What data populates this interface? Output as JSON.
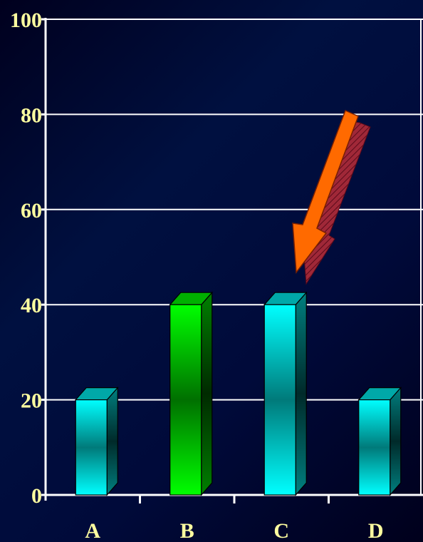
{
  "chart_data": {
    "type": "bar",
    "categories": [
      "A",
      "B",
      "C",
      "D"
    ],
    "values": [
      20,
      40,
      40,
      20
    ],
    "title": "",
    "xlabel": "",
    "ylabel": "",
    "ylim": [
      0,
      100
    ],
    "yticks": [
      "0",
      "20",
      "40",
      "60",
      "80",
      "100"
    ],
    "grid": true,
    "bar_colors": [
      "#00ffff",
      "#00ff00",
      "#00ffff",
      "#00ffff"
    ],
    "highlight_arrow": {
      "points_to": "C",
      "color": "#ff6600"
    }
  },
  "colors": {
    "background": "#001040",
    "gridline": "#ffffff",
    "axis": "#ffffff",
    "labels": "#ffffa0"
  }
}
